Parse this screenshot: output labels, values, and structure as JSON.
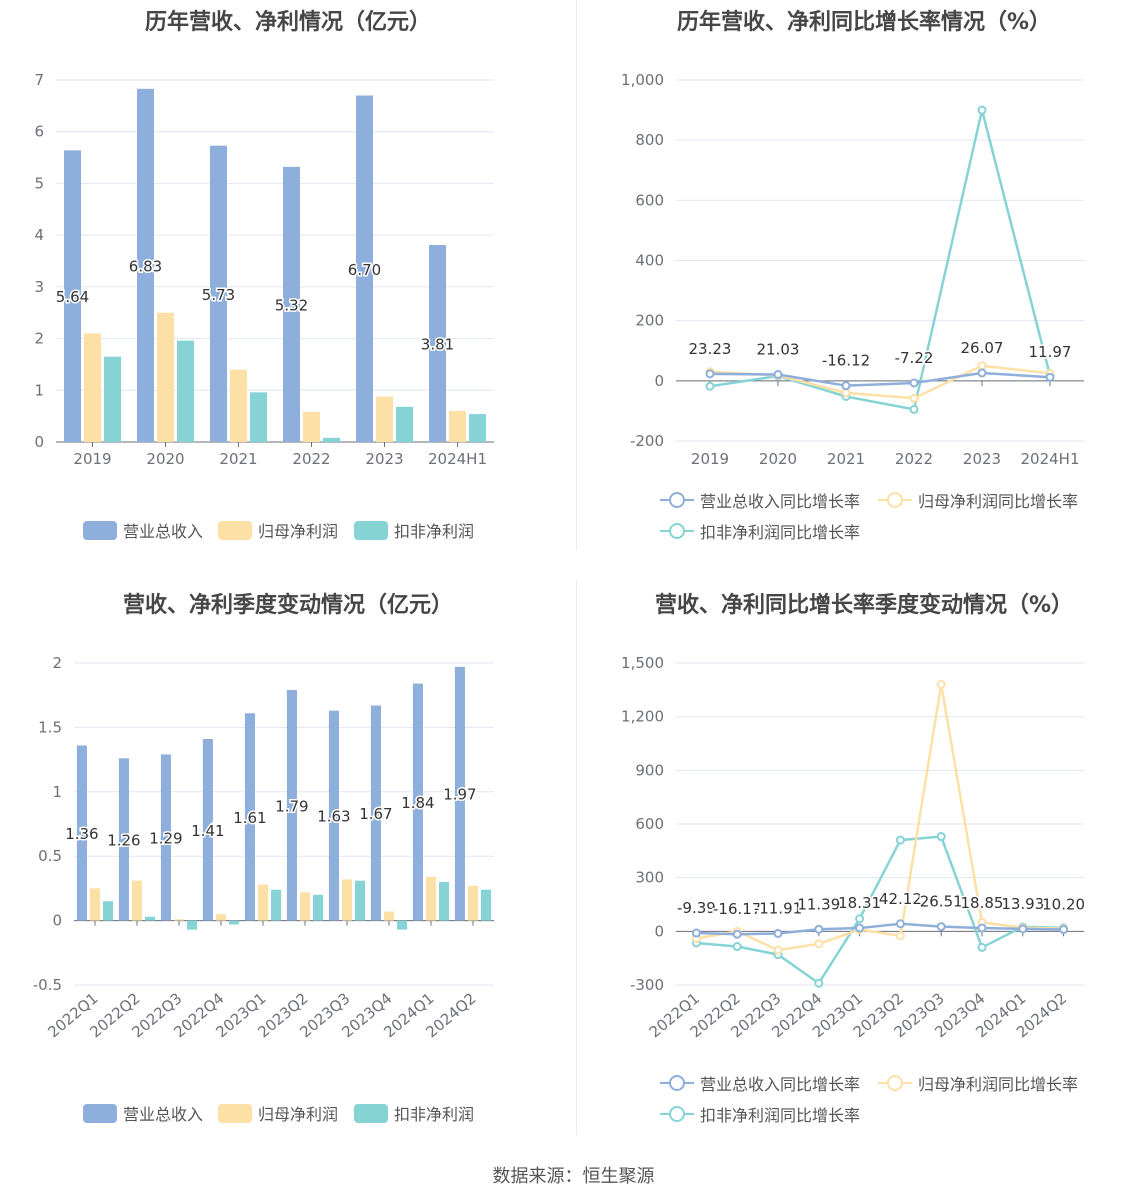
{
  "footer": "数据来源：恒生聚源",
  "colors": {
    "revenue": "#8eaedb",
    "netprofit": "#fde0a6",
    "deducted": "#86d3d6",
    "axis": "#6e7079",
    "grid": "#e0e6f1",
    "label": "#333333"
  },
  "legends": {
    "bars": [
      "营业总收入",
      "归母净利润",
      "扣非净利润"
    ],
    "lines": [
      "营业总收入同比增长率",
      "归母净利润同比增长率",
      "扣非净利润同比增长率"
    ]
  },
  "chart_data": [
    {
      "type": "bar",
      "title": "历年营收、净利情况（亿元）",
      "categories": [
        "2019",
        "2020",
        "2021",
        "2022",
        "2023",
        "2024H1"
      ],
      "ylim": [
        0,
        7
      ],
      "yticks": [
        "0",
        "1",
        "2",
        "3",
        "4",
        "5",
        "6",
        "7"
      ],
      "series": [
        {
          "name": "营业总收入",
          "values": [
            5.64,
            6.83,
            5.73,
            5.32,
            6.7,
            3.81
          ],
          "labels": [
            "5.64",
            "6.83",
            "5.73",
            "5.32",
            "6.70",
            "3.81"
          ]
        },
        {
          "name": "归母净利润",
          "values": [
            2.1,
            2.5,
            1.4,
            0.58,
            0.88,
            0.6
          ]
        },
        {
          "name": "扣非净利润",
          "values": [
            1.65,
            1.96,
            0.96,
            0.08,
            0.68,
            0.54
          ]
        }
      ]
    },
    {
      "type": "line",
      "title": "历年营收、净利同比增长率情况（%）",
      "categories": [
        "2019",
        "2020",
        "2021",
        "2022",
        "2023",
        "2024H1"
      ],
      "ylim": [
        -200,
        1000
      ],
      "yticks": [
        "-200",
        "0",
        "200",
        "400",
        "600",
        "800",
        "1,000"
      ],
      "series": [
        {
          "name": "营业总收入同比增长率",
          "values": [
            23.23,
            21.03,
            -16.12,
            -7.22,
            26.07,
            11.97
          ],
          "labels": [
            "23.23",
            "21.03",
            "-16.12",
            "-7.22",
            "26.07",
            "11.97"
          ]
        },
        {
          "name": "归母净利润同比增长率",
          "values": [
            30,
            18,
            -40,
            -58,
            50,
            25
          ]
        },
        {
          "name": "扣非净利润同比增长率",
          "values": [
            -18,
            16,
            -52,
            -95,
            900,
            18
          ]
        }
      ]
    },
    {
      "type": "bar",
      "title": "营收、净利季度变动情况（亿元）",
      "categories": [
        "2022Q1",
        "2022Q2",
        "2022Q3",
        "2022Q4",
        "2023Q1",
        "2023Q2",
        "2023Q3",
        "2023Q4",
        "2024Q1",
        "2024Q2"
      ],
      "ylim": [
        -0.5,
        2
      ],
      "yticks": [
        "-0.5",
        "0",
        "0.5",
        "1",
        "1.5",
        "2"
      ],
      "series": [
        {
          "name": "营业总收入",
          "values": [
            1.36,
            1.26,
            1.29,
            1.41,
            1.61,
            1.79,
            1.63,
            1.67,
            1.84,
            1.97
          ],
          "labels": [
            "1.36",
            "1.26",
            "1.29",
            "1.41",
            "1.61",
            "1.79",
            "1.63",
            "1.67",
            "1.84",
            "1.97"
          ]
        },
        {
          "name": "归母净利润",
          "values": [
            0.25,
            0.31,
            0.01,
            0.05,
            0.28,
            0.22,
            0.32,
            0.07,
            0.34,
            0.27
          ]
        },
        {
          "name": "扣非净利润",
          "values": [
            0.15,
            0.03,
            -0.07,
            -0.03,
            0.24,
            0.2,
            0.31,
            -0.07,
            0.3,
            0.24
          ]
        }
      ]
    },
    {
      "type": "line",
      "title": "营收、净利同比增长率季度变动情况（%）",
      "categories": [
        "2022Q1",
        "2022Q2",
        "2022Q3",
        "2022Q4",
        "2023Q1",
        "2023Q2",
        "2023Q3",
        "2023Q4",
        "2024Q1",
        "2024Q2"
      ],
      "ylim": [
        -300,
        1500
      ],
      "yticks": [
        "-300",
        "0",
        "300",
        "600",
        "900",
        "1,200",
        "1,500"
      ],
      "series": [
        {
          "name": "营业总收入同比增长率",
          "values": [
            -9.39,
            -16.17,
            -11.91,
            11.39,
            18.31,
            42.12,
            26.51,
            18.85,
            13.93,
            10.2
          ],
          "labels": [
            "-9.39",
            "-16.17",
            "-11.91",
            "11.39",
            "18.31",
            "42.12",
            "26.51",
            "18.85",
            "13.93",
            "10.20"
          ]
        },
        {
          "name": "归母净利润同比增长率",
          "values": [
            -40,
            0,
            -105,
            -70,
            10,
            -25,
            1380,
            50,
            20,
            15
          ]
        },
        {
          "name": "扣非净利润同比增长率",
          "values": [
            -65,
            -85,
            -130,
            -290,
            70,
            510,
            530,
            -90,
            25,
            20
          ]
        }
      ]
    }
  ]
}
